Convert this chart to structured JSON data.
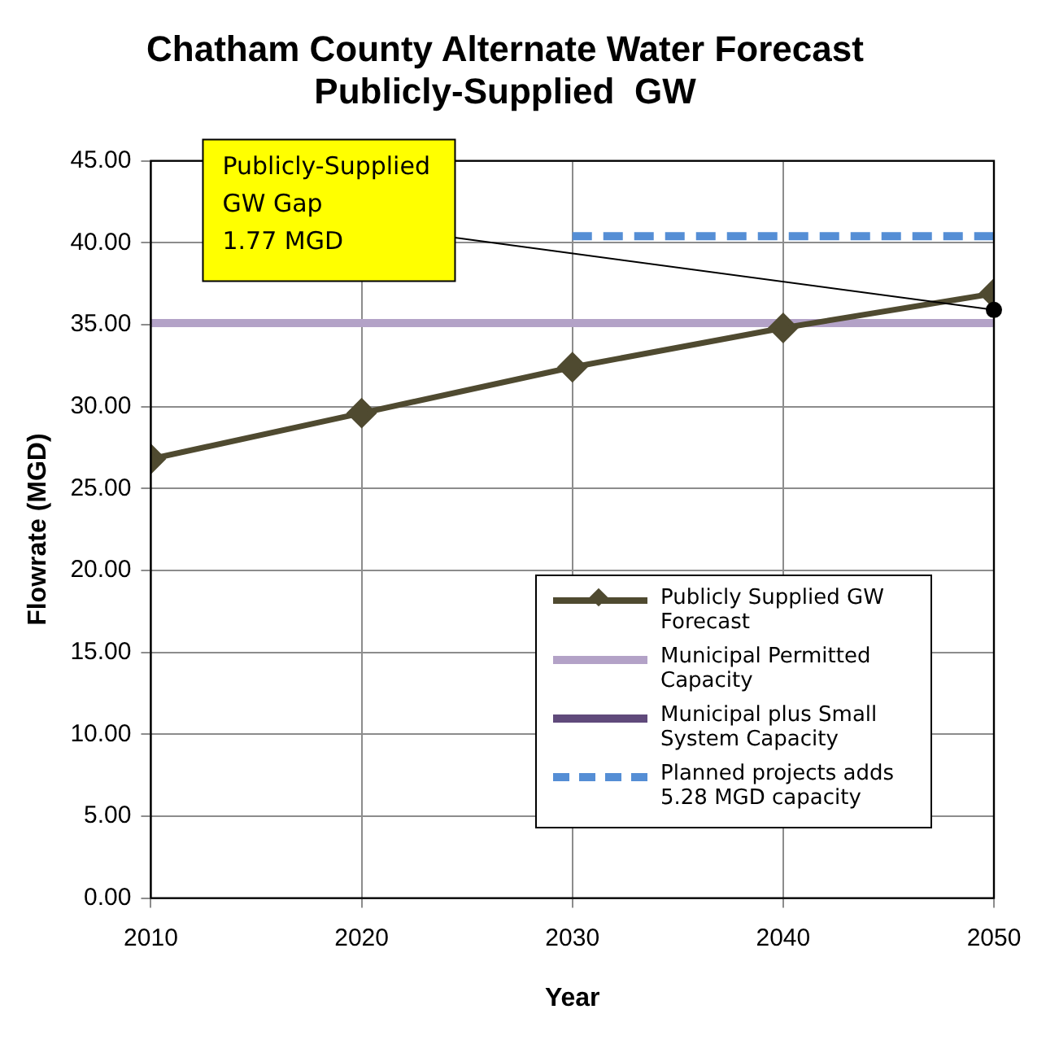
{
  "chart_data": {
    "type": "line",
    "title": [
      "Chatham County Alternate Water Forecast",
      "Publicly-Supplied  GW"
    ],
    "xlabel": "Year",
    "ylabel": "Flowrate (MGD)",
    "xlim": [
      2010,
      2050
    ],
    "xticks": [
      2010,
      2020,
      2030,
      2040,
      2050
    ],
    "ylim": [
      0,
      45
    ],
    "yticks": [
      {
        "value": 0,
        "label": "0.00"
      },
      {
        "value": 5,
        "label": "5.00"
      },
      {
        "value": 10,
        "label": "10.00"
      },
      {
        "value": 15,
        "label": "15.00"
      },
      {
        "value": 20,
        "label": "20.00"
      },
      {
        "value": 25,
        "label": "25.00"
      },
      {
        "value": 30,
        "label": "30.00"
      },
      {
        "value": 35,
        "label": "35.00"
      },
      {
        "value": 40,
        "label": "40.00"
      },
      {
        "value": 45,
        "label": "45.00"
      }
    ],
    "grid": true,
    "legend": "bottom right",
    "series": [
      {
        "name": "Publicly Supplied GW Forecast",
        "color": "#4f4a30",
        "marker": "diamond",
        "x": [
          2010,
          2020,
          2030,
          2040,
          2050
        ],
        "values": [
          26.8,
          29.6,
          32.4,
          34.8,
          36.9
        ]
      },
      {
        "name": "Municipal Permitted Capacity",
        "color": "#b3a2c7",
        "marker": "none",
        "x": [
          2010,
          2050
        ],
        "values": [
          35.1,
          35.1
        ]
      },
      {
        "name": "Municipal plus Small System Capacity",
        "color": "#604a7b",
        "marker": "none"
      },
      {
        "name": "Planned projects adds 5.28 MGD capacity",
        "color": "#558ed5",
        "marker": "none",
        "line_style": "dashed",
        "x": [
          2030,
          2050
        ],
        "values": [
          40.4,
          40.4
        ]
      }
    ],
    "annotations": [
      {
        "text": "Publicly-Supplied\nGW Gap\n1.77 MGD",
        "x": 2050,
        "y": 35.9
      }
    ]
  }
}
